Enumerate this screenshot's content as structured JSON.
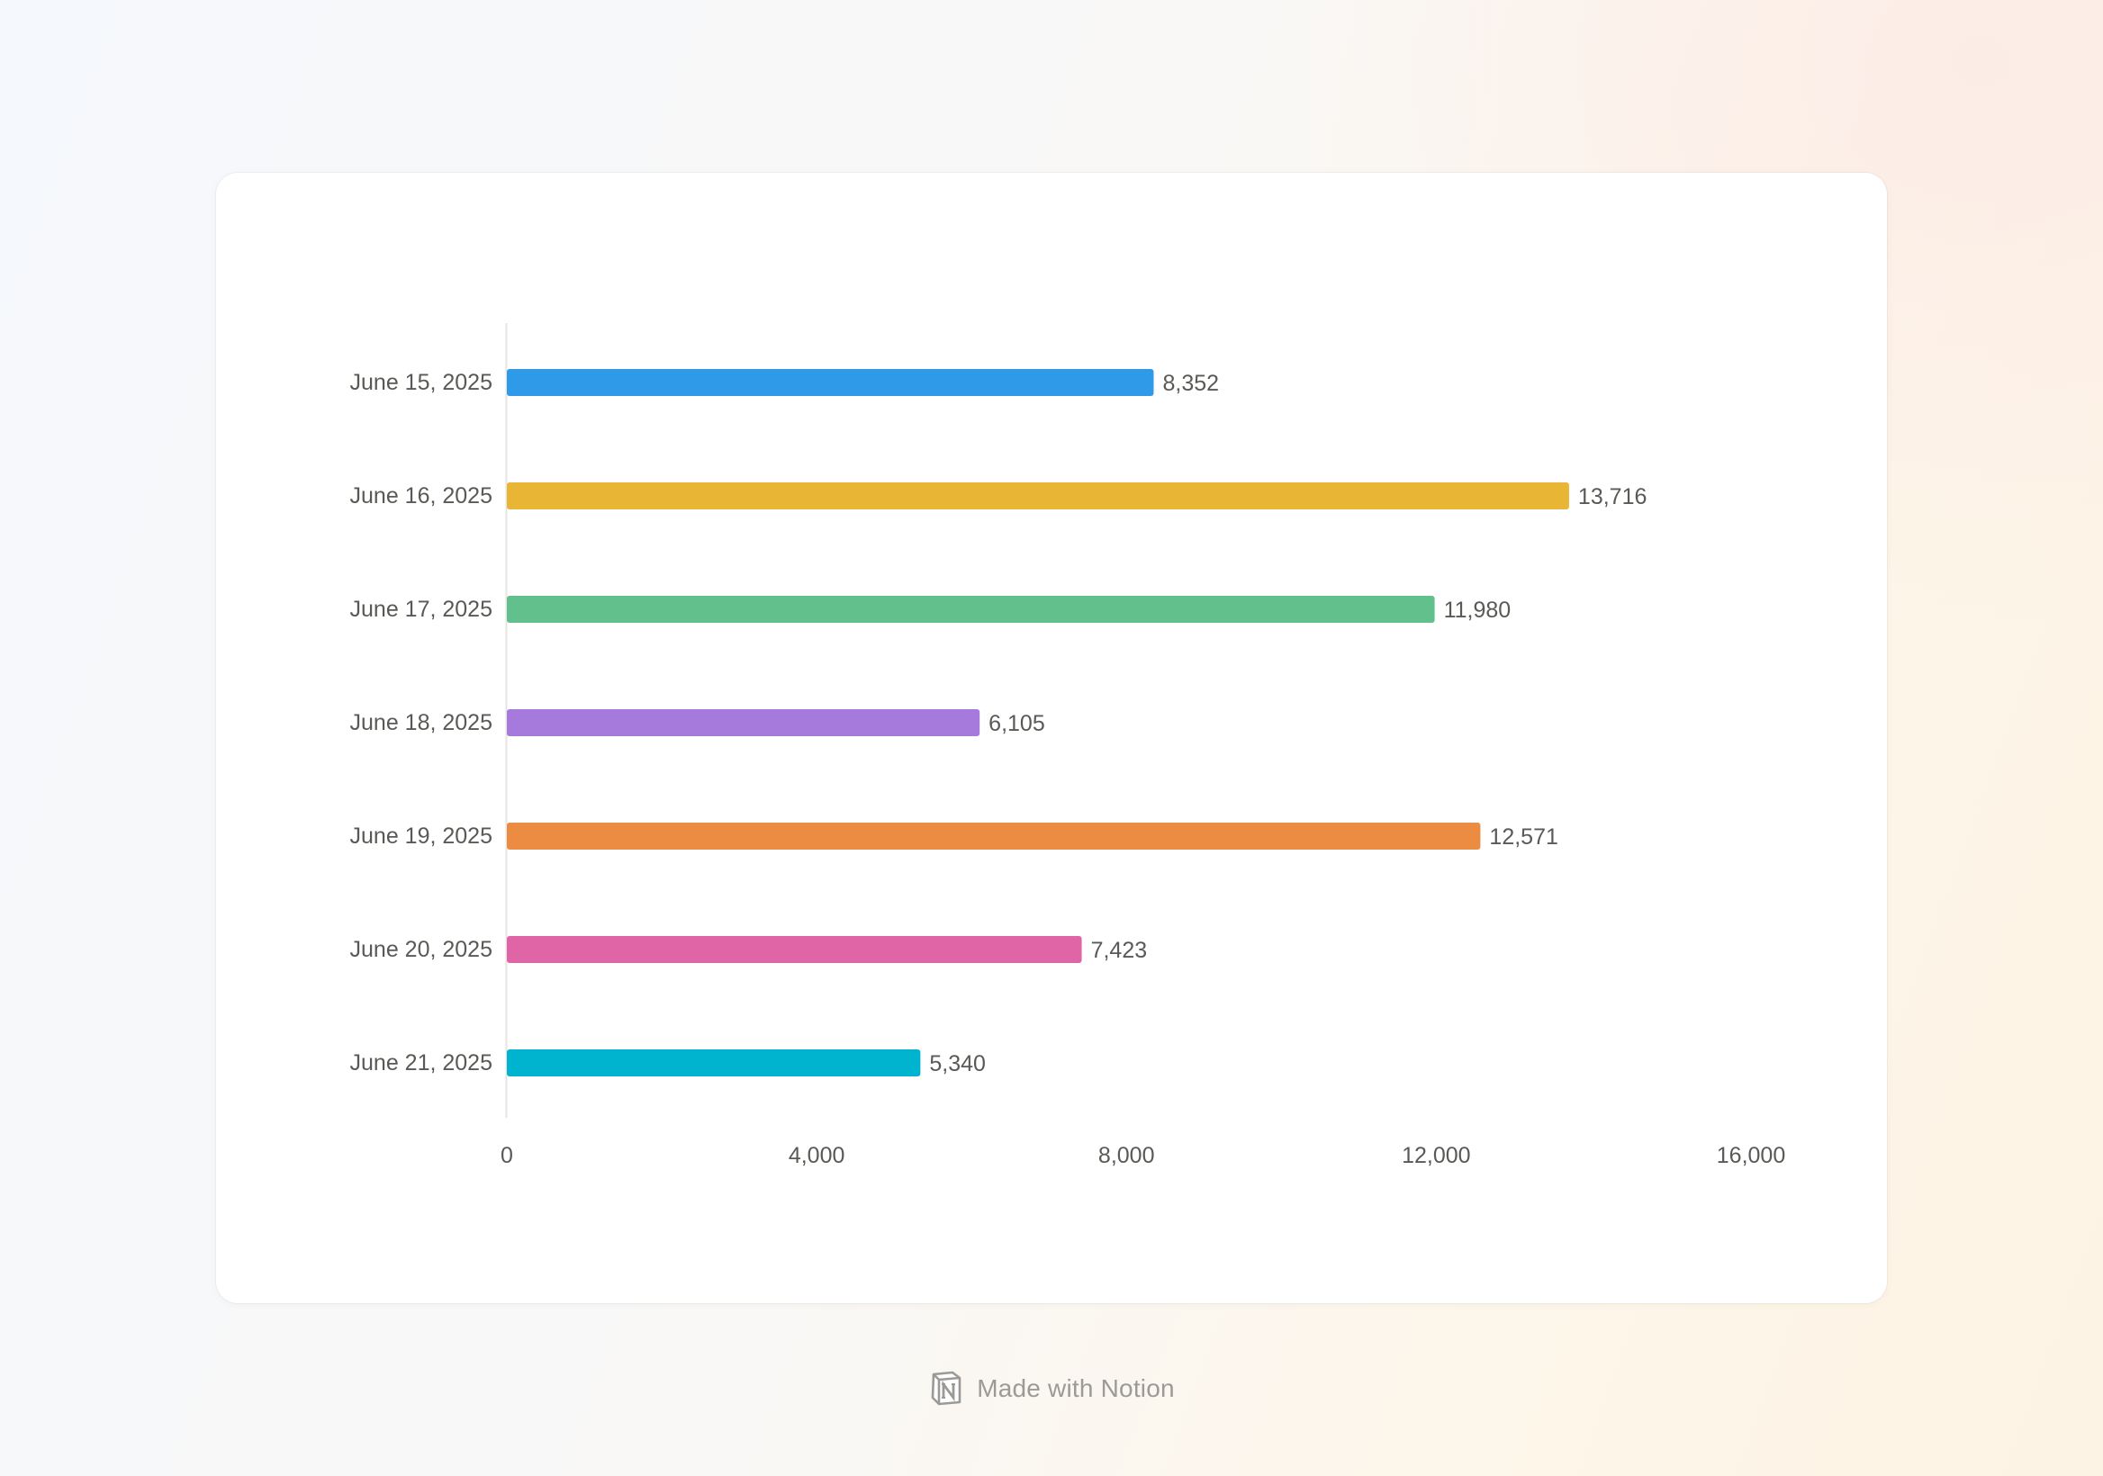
{
  "chart_data": {
    "type": "bar",
    "orientation": "horizontal",
    "categories": [
      "June 15, 2025",
      "June 16, 2025",
      "June 17, 2025",
      "June 18, 2025",
      "June 19, 2025",
      "June 20, 2025",
      "June 21, 2025"
    ],
    "values": [
      8352,
      13716,
      11980,
      6105,
      12571,
      7423,
      5340
    ],
    "value_labels": [
      "8,352",
      "13,716",
      "11,980",
      "6,105",
      "12,571",
      "7,423",
      "5,340"
    ],
    "colors": [
      "#2f9ae8",
      "#e9b535",
      "#61c08c",
      "#a67adc",
      "#ec8c42",
      "#e065a7",
      "#00b4cf"
    ],
    "xlim": [
      0,
      15600
    ],
    "x_ticks": [
      0,
      4000,
      8000,
      12000,
      16000
    ],
    "x_tick_labels": [
      "0",
      "4,000",
      "8,000",
      "12,000",
      "16,000"
    ],
    "title": "",
    "xlabel": "",
    "ylabel": "",
    "grid": false,
    "legend": "none"
  },
  "footer": {
    "text": "Made with Notion",
    "icon": "notion-logo-icon"
  }
}
